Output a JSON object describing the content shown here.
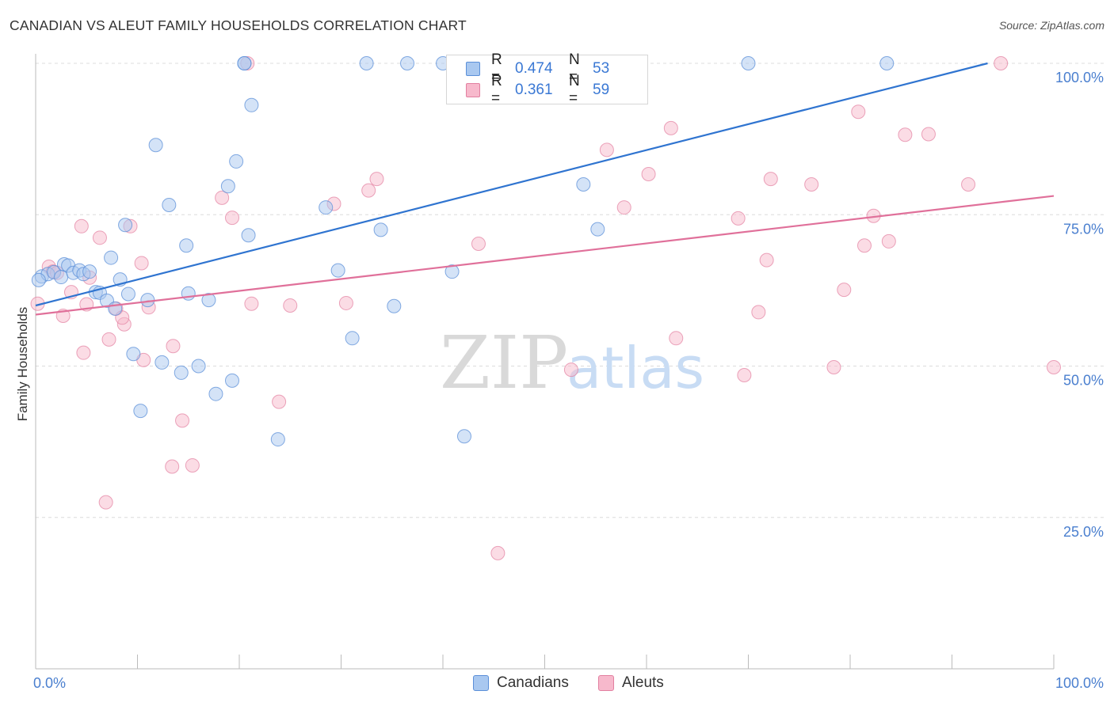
{
  "header": {
    "title": "CANADIAN VS ALEUT FAMILY HOUSEHOLDS CORRELATION CHART",
    "source": "Source: ZipAtlas.com"
  },
  "watermark": {
    "zip": "ZIP",
    "atlas": "atlas"
  },
  "legend": {
    "rows": [
      {
        "key": "R =",
        "r": "0.474",
        "n_key": "N =",
        "n": "53",
        "color": "#a9c8f0",
        "border": "#5b8fd8"
      },
      {
        "key": "R =",
        "r": "0.361",
        "n_key": "N =",
        "n": "59",
        "color": "#f7b9cc",
        "border": "#e27fa0"
      }
    ]
  },
  "bottom_legend": {
    "canadians": "Canadians",
    "aleuts": "Aleuts"
  },
  "chart_data": {
    "type": "scatter",
    "title": "CANADIAN VS ALEUT FAMILY HOUSEHOLDS CORRELATION CHART",
    "xlabel": "",
    "ylabel": "Family Households",
    "xlim": [
      0,
      100
    ],
    "ylim": [
      0,
      100
    ],
    "x_tick_labels": [
      "0.0%",
      "100.0%"
    ],
    "y_tick_labels": [
      "25.0%",
      "50.0%",
      "75.0%",
      "100.0%"
    ],
    "y_ticks": [
      25,
      50,
      75,
      100
    ],
    "colors": {
      "canadians": "#5b8fd8",
      "aleuts": "#e27fa0",
      "canadians_line": "#2f74d0",
      "aleuts_line": "#e0709a"
    },
    "series": [
      {
        "name": "Canadians",
        "r": 0.474,
        "n": 53,
        "trend": {
          "x": [
            0,
            93.5
          ],
          "y": [
            60,
            100
          ]
        },
        "points": [
          [
            0.6,
            64.8
          ],
          [
            1.2,
            65.2
          ],
          [
            1.8,
            65.5
          ],
          [
            2.5,
            64.7
          ],
          [
            2.8,
            66.8
          ],
          [
            3.2,
            66.6
          ],
          [
            3.7,
            65.4
          ],
          [
            4.3,
            65.8
          ],
          [
            4.7,
            65.2
          ],
          [
            5.3,
            65.6
          ],
          [
            5.9,
            62.2
          ],
          [
            6.3,
            62.1
          ],
          [
            7.0,
            60.8
          ],
          [
            7.4,
            67.9
          ],
          [
            7.8,
            59.5
          ],
          [
            8.3,
            64.3
          ],
          [
            8.8,
            73.3
          ],
          [
            9.1,
            61.9
          ],
          [
            9.6,
            52.0
          ],
          [
            10.3,
            42.6
          ],
          [
            11.0,
            60.9
          ],
          [
            11.8,
            86.5
          ],
          [
            12.4,
            50.6
          ],
          [
            13.1,
            76.6
          ],
          [
            14.3,
            48.9
          ],
          [
            14.8,
            69.9
          ],
          [
            16.0,
            50.0
          ],
          [
            17.0,
            60.9
          ],
          [
            17.7,
            45.4
          ],
          [
            18.9,
            79.7
          ],
          [
            19.3,
            47.6
          ],
          [
            19.7,
            83.8
          ],
          [
            20.5,
            100
          ],
          [
            20.5,
            100
          ],
          [
            20.9,
            71.6
          ],
          [
            21.2,
            93.1
          ],
          [
            23.8,
            37.9
          ],
          [
            28.5,
            76.2
          ],
          [
            29.7,
            65.8
          ],
          [
            31.1,
            54.6
          ],
          [
            32.5,
            100
          ],
          [
            33.9,
            72.5
          ],
          [
            35.2,
            59.9
          ],
          [
            36.5,
            100
          ],
          [
            40.0,
            100
          ],
          [
            40.9,
            65.6
          ],
          [
            42.1,
            38.4
          ],
          [
            53.8,
            80.0
          ],
          [
            55.2,
            72.6
          ],
          [
            70.0,
            100
          ],
          [
            83.6,
            100
          ],
          [
            0.3,
            64.2
          ],
          [
            15.0,
            62.0
          ]
        ]
      },
      {
        "name": "Aleuts",
        "r": 0.361,
        "n": 59,
        "trend": {
          "x": [
            0,
            100
          ],
          "y": [
            58.5,
            78.1
          ]
        },
        "points": [
          [
            0.2,
            60.3
          ],
          [
            1.3,
            66.4
          ],
          [
            1.7,
            65.6
          ],
          [
            2.1,
            65.4
          ],
          [
            2.7,
            58.3
          ],
          [
            3.5,
            62.2
          ],
          [
            4.7,
            52.2
          ],
          [
            4.5,
            73.1
          ],
          [
            5.3,
            64.6
          ],
          [
            6.3,
            71.2
          ],
          [
            6.9,
            27.5
          ],
          [
            7.2,
            54.4
          ],
          [
            7.9,
            59.5
          ],
          [
            8.7,
            56.9
          ],
          [
            9.3,
            73.1
          ],
          [
            10.4,
            67.0
          ],
          [
            10.6,
            51.0
          ],
          [
            11.1,
            59.7
          ],
          [
            13.5,
            53.3
          ],
          [
            13.4,
            33.4
          ],
          [
            14.4,
            41.0
          ],
          [
            15.4,
            33.6
          ],
          [
            18.3,
            77.8
          ],
          [
            19.3,
            74.5
          ],
          [
            20.8,
            100
          ],
          [
            21.2,
            60.3
          ],
          [
            23.9,
            44.1
          ],
          [
            29.3,
            76.8
          ],
          [
            30.5,
            60.4
          ],
          [
            32.7,
            79.0
          ],
          [
            33.5,
            80.9
          ],
          [
            43.5,
            70.2
          ],
          [
            45.4,
            19.1
          ],
          [
            52.6,
            49.4
          ],
          [
            56.1,
            85.7
          ],
          [
            57.8,
            76.2
          ],
          [
            60.2,
            81.7
          ],
          [
            62.4,
            89.3
          ],
          [
            62.9,
            54.6
          ],
          [
            69.0,
            74.4
          ],
          [
            69.6,
            48.5
          ],
          [
            71.0,
            58.9
          ],
          [
            71.8,
            67.5
          ],
          [
            72.2,
            80.9
          ],
          [
            76.2,
            80.0
          ],
          [
            78.4,
            49.8
          ],
          [
            79.4,
            62.6
          ],
          [
            80.8,
            92.0
          ],
          [
            81.4,
            69.9
          ],
          [
            82.3,
            74.8
          ],
          [
            83.8,
            70.6
          ],
          [
            85.4,
            88.2
          ],
          [
            87.7,
            88.3
          ],
          [
            91.6,
            80.0
          ],
          [
            94.8,
            100
          ],
          [
            100,
            49.8
          ],
          [
            5.0,
            60.2
          ],
          [
            8.5,
            58.0
          ],
          [
            25.0,
            60.0
          ]
        ]
      }
    ]
  }
}
